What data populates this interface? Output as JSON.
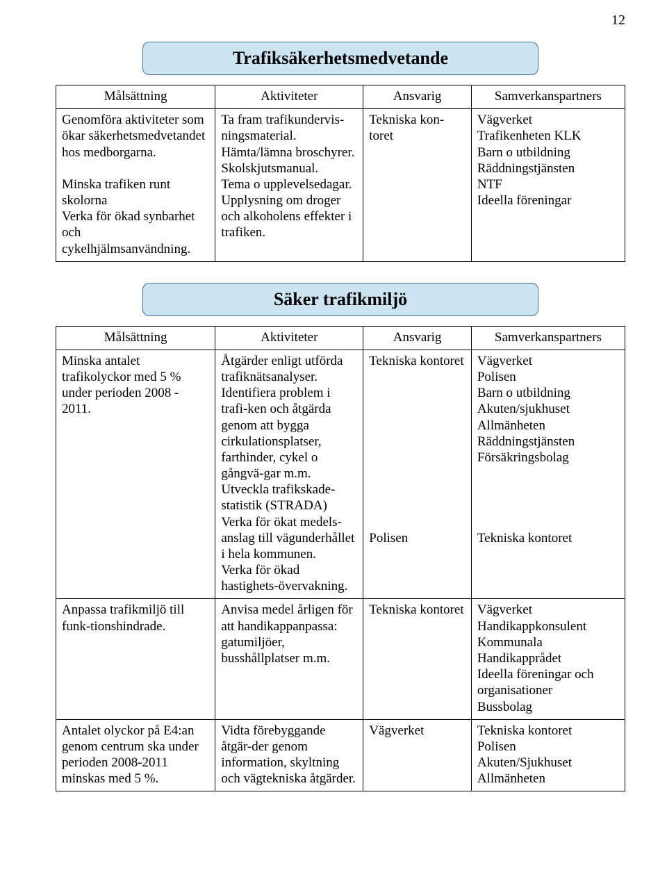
{
  "page_number": "12",
  "banners": {
    "b1": "Trafiksäkerhetsmedvetande",
    "b2": "Säker trafikmiljö"
  },
  "table1": {
    "headers": {
      "h1": "Målsättning",
      "h2": "Aktiviteter",
      "h3": "Ansvarig",
      "h4": "Samverkanspartners"
    },
    "row1": {
      "c1": "Genomföra aktiviteter som ökar säkerhetsmedvetandet hos medborgarna.\n\nMinska trafiken runt skolorna\nVerka för ökad synbarhet och cykelhjälmsanvändning.",
      "c2": "Ta fram trafikundervis-ningsmaterial.\nHämta/lämna broschyrer.\nSkolskjutsmanual.\nTema o upplevelsedagar.\nUpplysning om droger och alkoholens effekter i trafiken.",
      "c3": "Tekniska kon-toret",
      "c4": "Vägverket\nTrafikenheten KLK\nBarn o utbildning\nRäddningstjänsten\nNTF\nIdeella föreningar"
    }
  },
  "table2": {
    "headers": {
      "h1": "Målsättning",
      "h2": "Aktiviteter",
      "h3": "Ansvarig",
      "h4": "Samverkanspartners"
    },
    "row1": {
      "c1": "Minska antalet trafikolyckor med 5 % under perioden 2008 - 2011.",
      "c2": "Åtgärder enligt utförda trafiknätsanalyser.\nIdentifiera problem i trafi-ken och åtgärda genom att bygga cirkulationsplatser, farthinder, cykel o gångvä-gar m.m.\nUtveckla trafikskade-statistik (STRADA)\nVerka för ökat medels-anslag till vägunderhållet i hela kommunen.\nVerka för ökad hastighets-övervakning.",
      "c3": "Tekniska kontoret\n\n\n\n\n\n\n\n\n\n\nPolisen",
      "c4": "Vägverket\nPolisen\nBarn o utbildning\nAkuten/sjukhuset\nAllmänheten\nRäddningstjänsten\nFörsäkringsbolag\n\n\n\n\nTekniska kontoret"
    },
    "row2": {
      "c1": "Anpassa trafikmiljö till funk-tionshindrade.",
      "c2": "Anvisa medel årligen för att handikappanpassa: gatumiljöer, busshållplatser m.m.",
      "c3": "Tekniska kontoret",
      "c4": "Vägverket\nHandikappkonsulent\nKommunala Handikapprådet\nIdeella föreningar och organisationer\nBussbolag"
    },
    "row3": {
      "c1": "Antalet olyckor på E4:an genom centrum ska under perioden 2008-2011 minskas med 5 %.",
      "c2": "Vidta förebyggande åtgär-der genom information, skyltning och vägtekniska åtgärder.",
      "c3": "Vägverket",
      "c4": "Tekniska kontoret\nPolisen\nAkuten/Sjukhuset\nAllmänheten"
    }
  }
}
